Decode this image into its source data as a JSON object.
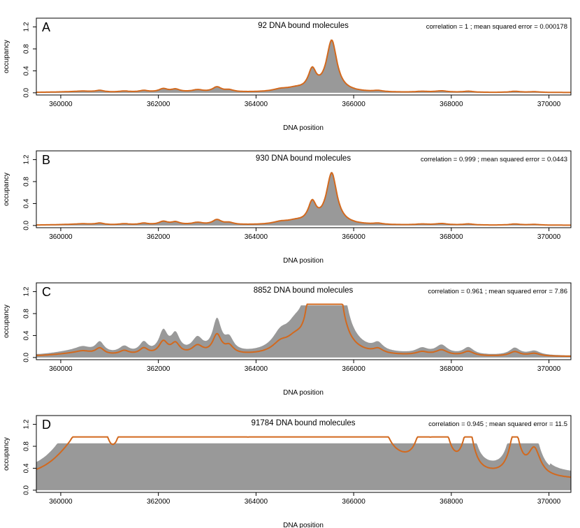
{
  "figure": {
    "background": "#ffffff"
  },
  "colors": {
    "fill": "#999999",
    "line": "#d2691e",
    "axis": "#000000"
  },
  "chart_data": [
    {
      "type": "area",
      "panel_label": "A",
      "title": "92  DNA bound molecules",
      "stats": "correlation =  1 ; mean squared error =  0.000178",
      "xlabel": "DNA position",
      "ylabel": "occupancy",
      "xlim": [
        359500,
        370450
      ],
      "ylim": [
        -0.04,
        1.36
      ],
      "xticks": [
        360000,
        362000,
        364000,
        366000,
        368000,
        370000
      ],
      "yticks": [
        0.0,
        0.4,
        0.8,
        1.2
      ],
      "ytick_labels": [
        "0.0",
        "0.4",
        "0.8",
        "1.2"
      ],
      "fill_scale": 1.0,
      "line_scale": 1.0,
      "saturate": 0
    },
    {
      "type": "area",
      "panel_label": "B",
      "title": "930  DNA bound molecules",
      "stats": "correlation =  0.999 ; mean squared error =  0.0443",
      "xlabel": "DNA position",
      "ylabel": "occupancy",
      "xlim": [
        359500,
        370450
      ],
      "ylim": [
        -0.04,
        1.36
      ],
      "xticks": [
        360000,
        362000,
        364000,
        366000,
        368000,
        370000
      ],
      "yticks": [
        0.0,
        0.4,
        0.8,
        1.2
      ],
      "ytick_labels": [
        "0.0",
        "0.4",
        "0.8",
        "1.2"
      ],
      "fill_scale": 1.02,
      "line_scale": 1.0,
      "saturate": 0
    },
    {
      "type": "area",
      "panel_label": "C",
      "title": "8852  DNA bound molecules",
      "stats": "correlation =  0.961 ; mean squared error =  7.86",
      "xlabel": "DNA position",
      "ylabel": "occupancy",
      "xlim": [
        359500,
        370450
      ],
      "ylim": [
        -0.04,
        1.36
      ],
      "xticks": [
        360000,
        362000,
        364000,
        366000,
        368000,
        370000
      ],
      "yticks": [
        0.0,
        0.4,
        0.8,
        1.2
      ],
      "ytick_labels": [
        "0.0",
        "0.4",
        "0.8",
        "1.2"
      ],
      "fill_scale": 6.5,
      "line_scale": 3.9,
      "saturate": 1
    },
    {
      "type": "area",
      "panel_label": "D",
      "title": "91784  DNA bound molecules",
      "stats": "correlation =  0.945 ; mean squared error =  11.5",
      "xlabel": "DNA position",
      "ylabel": "occupancy",
      "xlim": [
        359500,
        370450
      ],
      "ylim": [
        -0.04,
        1.36
      ],
      "xticks": [
        360000,
        362000,
        364000,
        366000,
        368000,
        370000
      ],
      "yticks": [
        0.0,
        0.4,
        0.8,
        1.2
      ],
      "ytick_labels": [
        "0.0",
        "0.4",
        "0.8",
        "1.2"
      ],
      "fill_scale": 60,
      "line_scale": 40,
      "saturate": 1
    }
  ]
}
